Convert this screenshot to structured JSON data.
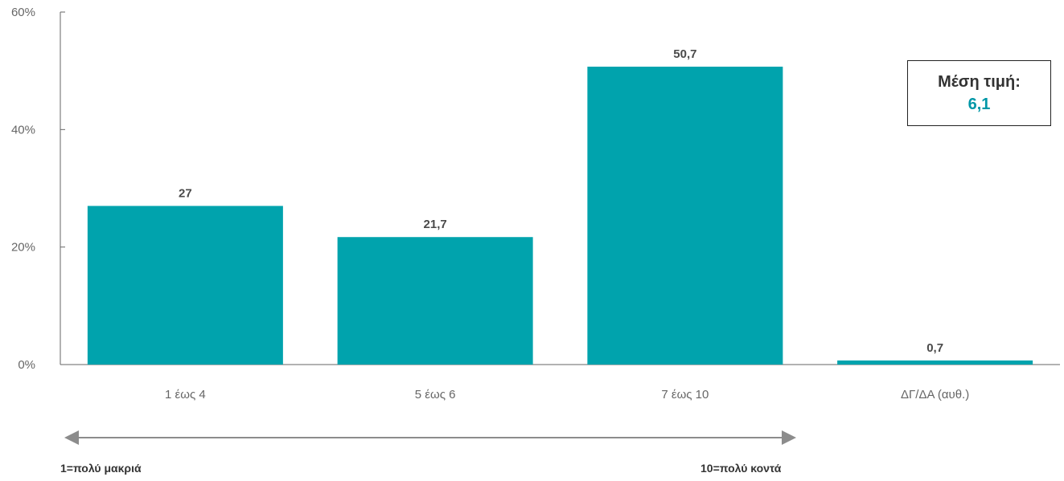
{
  "chart_data": {
    "type": "bar",
    "categories": [
      "1 έως 4",
      "5 έως 6",
      "7 έως 10",
      "ΔΓ/ΔΑ (αυθ.)"
    ],
    "values": [
      27,
      21.7,
      50.7,
      0.7
    ],
    "value_labels": [
      "27",
      "21,7",
      "50,7",
      "0,7"
    ],
    "ylim": [
      0,
      60
    ],
    "yticks": [
      0,
      20,
      40,
      60
    ],
    "ytick_labels": [
      "0%",
      "20%",
      "40%",
      "60%"
    ],
    "grid": false,
    "bar_color": "#00a3ad"
  },
  "mean_box": {
    "title": "Μέση τιμή:",
    "value": "6,1",
    "value_color": "#0097a7"
  },
  "scale": {
    "left_label": "1=πολύ μακριά",
    "right_label": "10=πολύ κοντά",
    "arrow_color": "#8c8c8c"
  }
}
